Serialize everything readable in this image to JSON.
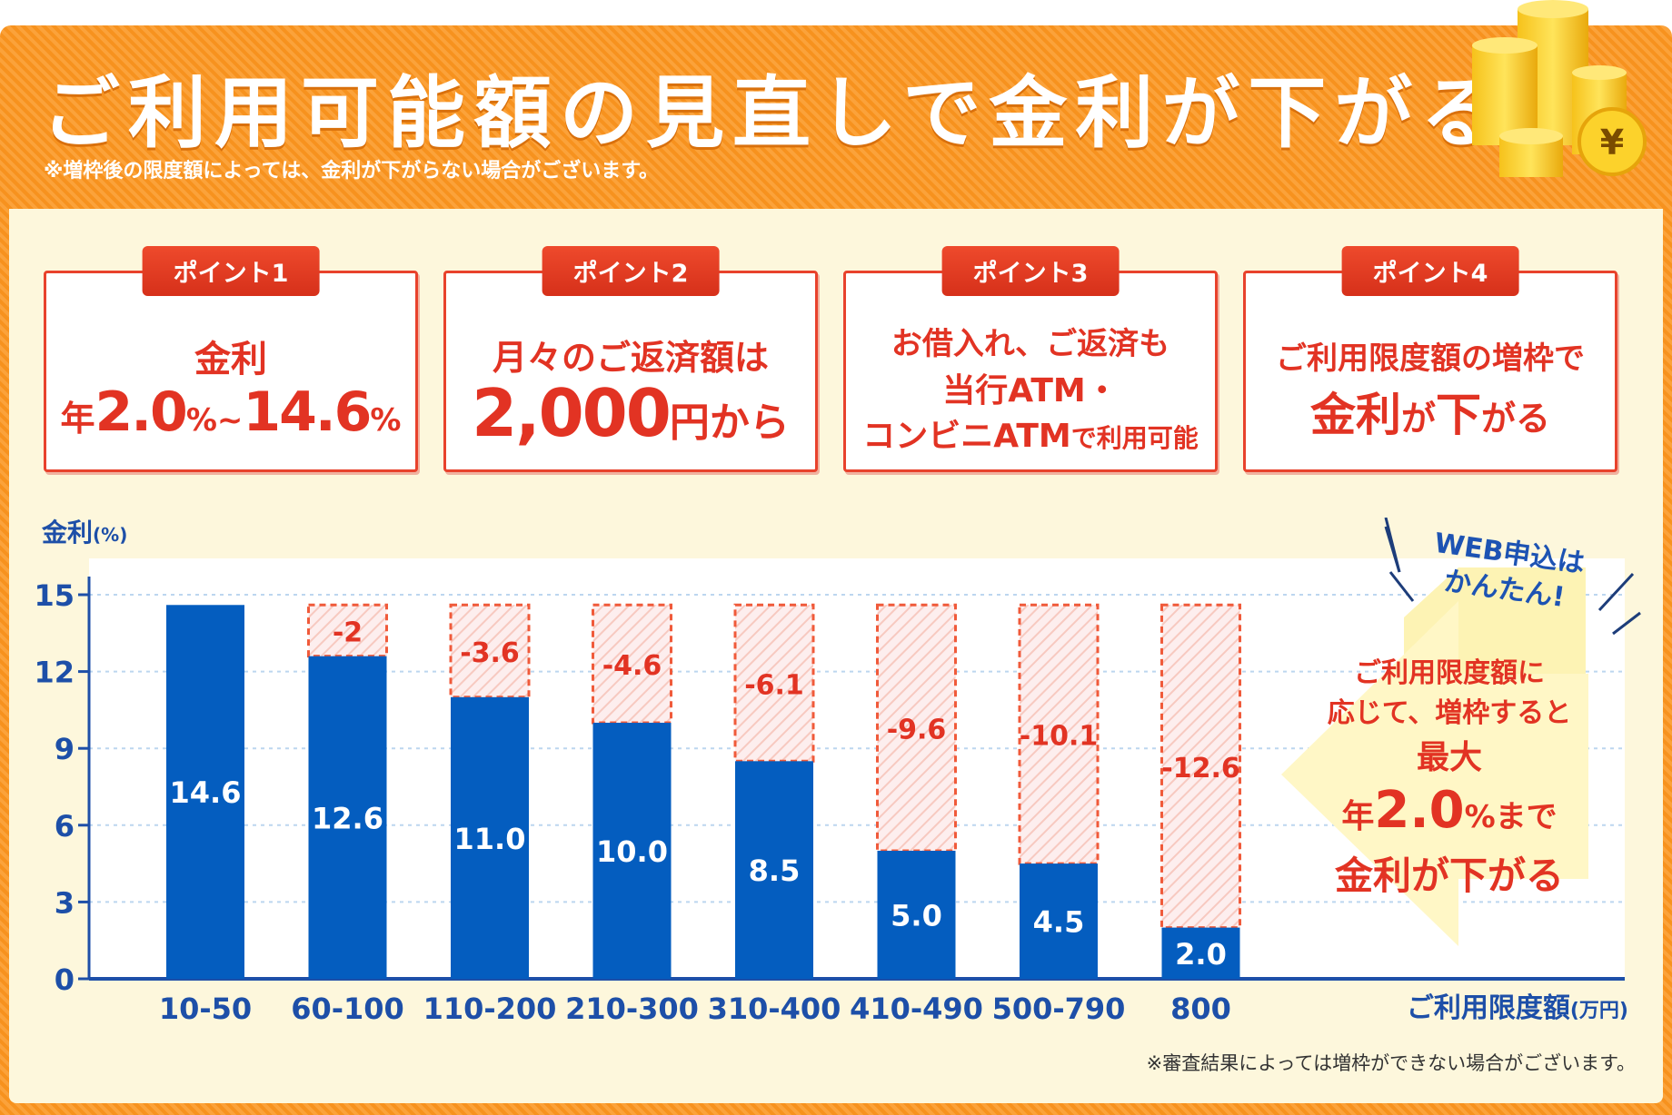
{
  "header": {
    "title": "ご利用可能額の見直しで金利が下がる!",
    "note": "※増枠後の限度額によっては、金利が下がらない場合がございます。"
  },
  "points": [
    {
      "tag": "ポイント1",
      "line1": "金利",
      "l2a": "年",
      "l2b": "2.0",
      "l2c": "%~",
      "l2d": "14.6",
      "l2e": "%"
    },
    {
      "tag": "ポイント2",
      "line1": "月々のご返済額は",
      "big": "2,000",
      "suffix": "円から"
    },
    {
      "tag": "ポイント3",
      "line1": "お借入れ、ご返済も",
      "line2": "当行ATM・",
      "line3a": "コンビニATM",
      "line3b": "で利用可能"
    },
    {
      "tag": "ポイント4",
      "line1": "ご利用限度額の増枠で",
      "l2a": "金利",
      "l2b": "が",
      "l2c": "下",
      "l2d": "がる"
    }
  ],
  "chart_data": {
    "type": "bar",
    "ylabel": "金利",
    "ylabel_unit": "(%)",
    "xlabel": "ご利用限度額",
    "xlabel_unit": "(万円)",
    "ylim": [
      0,
      15
    ],
    "yticks": [
      0,
      3,
      6,
      9,
      12,
      15
    ],
    "categories": [
      "10-50",
      "60-100",
      "110-200",
      "210-300",
      "310-400",
      "410-490",
      "500-790",
      "800"
    ],
    "values": [
      14.6,
      12.6,
      11.0,
      10.0,
      8.5,
      5.0,
      4.5,
      2.0
    ],
    "value_labels": [
      "14.6",
      "12.6",
      "11.0",
      "10.0",
      "8.5",
      "5.0",
      "4.5",
      "2.0"
    ],
    "reductions": [
      null,
      "-2",
      "-3.6",
      "-4.6",
      "-6.1",
      "-9.6",
      "-10.1",
      "-12.6"
    ],
    "max_rate": 14.6,
    "bar_color": "#045dbf",
    "reduction_color": "#f05a3a",
    "grid": true
  },
  "callout": {
    "web1": "WEB申込は",
    "web2": "かんたん!",
    "line1": "ご利用限度額に",
    "line2": "応じて、増枠すると",
    "line3": "最大",
    "l4a": "年",
    "l4b": "2.0",
    "l4c": "%まで",
    "line5": "金利が下がる"
  },
  "footnote": "※審査結果によっては増枠ができない場合がございます。",
  "coin_symbol": "¥"
}
